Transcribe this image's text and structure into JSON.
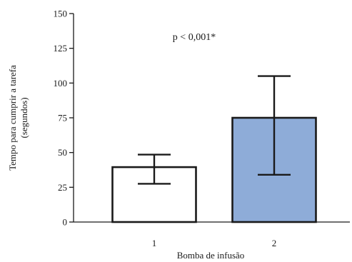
{
  "chart_data": {
    "type": "bar",
    "categories": [
      "1",
      "2"
    ],
    "values": [
      39.5,
      75
    ],
    "errors": [
      {
        "low": 27.5,
        "high": 48.5
      },
      {
        "low": 34,
        "high": 105
      }
    ],
    "bar_colors": [
      "#ffffff",
      "#8eacd8"
    ],
    "bar_edge_color": "#1a1a1a",
    "title": "",
    "xlabel": "Bomba de infusão",
    "ylabel_line1": "Tempo para cumprir a tarefa",
    "ylabel_line2": "(segundos)",
    "ylim": [
      0,
      150
    ],
    "yticks": [
      0,
      25,
      50,
      75,
      100,
      125,
      150
    ],
    "ytick_labels": [
      "0",
      "25",
      "50",
      "75",
      "100",
      "125",
      "150"
    ],
    "annotation": "p < 0,001*",
    "grid": false
  }
}
